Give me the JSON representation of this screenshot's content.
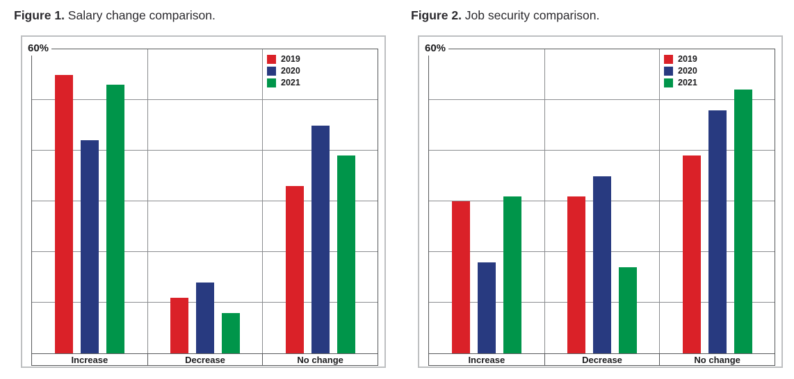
{
  "page": {
    "background": "#ffffff"
  },
  "colors": {
    "series_2019": "#da2128",
    "series_2020": "#283a80",
    "series_2021": "#00954a",
    "plot_border": "#57585a",
    "gridline": "#8a8c8f",
    "outer_border": "#bdbfc1",
    "text": "#231f20"
  },
  "chart_data": [
    {
      "type": "bar",
      "caption_bold": "Figure 1.",
      "caption_rest": " Salary change comparison.",
      "ymax_label": "60%",
      "ylim": [
        0,
        60
      ],
      "grid_step": 10,
      "grid": true,
      "legend_position": "top-right-inside",
      "categories": [
        "Increase",
        "Decrease",
        "No change"
      ],
      "series": [
        {
          "name": "2019",
          "color": "#da2128",
          "values": [
            55,
            11,
            33
          ]
        },
        {
          "name": "2020",
          "color": "#283a80",
          "values": [
            42,
            14,
            45
          ]
        },
        {
          "name": "2021",
          "color": "#00954a",
          "values": [
            53,
            8,
            39
          ]
        }
      ]
    },
    {
      "type": "bar",
      "caption_bold": "Figure 2.",
      "caption_rest": " Job security comparison.",
      "ymax_label": "60%",
      "ylim": [
        0,
        60
      ],
      "grid_step": 10,
      "grid": true,
      "legend_position": "top-right-inside",
      "categories": [
        "Increase",
        "Decrease",
        "No change"
      ],
      "series": [
        {
          "name": "2019",
          "color": "#da2128",
          "values": [
            30,
            31,
            39
          ]
        },
        {
          "name": "2020",
          "color": "#283a80",
          "values": [
            18,
            35,
            48
          ]
        },
        {
          "name": "2021",
          "color": "#00954a",
          "values": [
            31,
            17,
            52
          ]
        }
      ]
    }
  ]
}
